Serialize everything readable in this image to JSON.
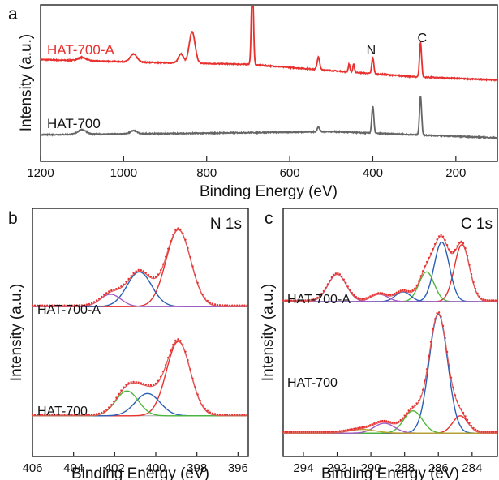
{
  "colors": {
    "red": "#e8302e",
    "gray": "#666666",
    "blue": "#2a5fb4",
    "green": "#4cb83a",
    "olive": "#b7a52c",
    "purple": "#a35bc6",
    "envelope": "#e05a5a",
    "baseline": "#aaaaaa",
    "dots": "#e8302e"
  },
  "chart_data": [
    {
      "panel": "a",
      "type": "line",
      "xlabel": "Binding Energy (eV)",
      "ylabel": "Intensity (a.u.)",
      "xlim": [
        1200,
        100
      ],
      "xticks": [
        1200,
        1000,
        800,
        600,
        400,
        200
      ],
      "ylim": [
        0,
        1
      ],
      "annotations": [
        {
          "text": "N",
          "x": 400
        },
        {
          "text": "C",
          "x": 285
        }
      ],
      "series": [
        {
          "name": "HAT-700-A",
          "color": "red",
          "offset": 0.6,
          "peaks": [
            [
              1100,
              0.02,
              10
            ],
            [
              976,
              0.05,
              8
            ],
            [
              862,
              0.06,
              6
            ],
            [
              835,
              0.2,
              7
            ],
            [
              690,
              0.55,
              2.5
            ],
            [
              531,
              0.08,
              3
            ],
            [
              457,
              0.05,
              2
            ],
            [
              446,
              0.05,
              2
            ],
            [
              400,
              0.1,
              2.5
            ],
            [
              285,
              0.22,
              2.5
            ]
          ],
          "background": [
            [
              1200,
              0.05
            ],
            [
              900,
              0.03
            ],
            [
              700,
              0.02
            ],
            [
              300,
              -0.06
            ],
            [
              100,
              -0.08
            ]
          ]
        },
        {
          "name": "HAT-700",
          "color": "gray",
          "offset": 0.17,
          "peaks": [
            [
              1100,
              0.03,
              10
            ],
            [
              976,
              0.02,
              8
            ],
            [
              531,
              0.03,
              3
            ],
            [
              400,
              0.17,
              2.5
            ],
            [
              285,
              0.25,
              2.5
            ]
          ],
          "background": [
            [
              1200,
              0.0
            ],
            [
              800,
              0.01
            ],
            [
              500,
              0.02
            ],
            [
              300,
              0.0
            ],
            [
              100,
              -0.02
            ]
          ]
        }
      ]
    },
    {
      "panel": "b",
      "type": "line",
      "title": "N 1s",
      "xlabel": "Binding Energy (eV)",
      "ylabel": "Intensity (a.u.)",
      "xlim": [
        406,
        395.5
      ],
      "xticks": [
        406,
        404,
        402,
        400,
        398,
        396
      ],
      "ylim": [
        0,
        1
      ],
      "samples": [
        {
          "name": "HAT-700-A",
          "offset": 0.6,
          "components": [
            {
              "center": 398.9,
              "height": 0.31,
              "width": 0.6,
              "color": "red"
            },
            {
              "center": 400.8,
              "height": 0.14,
              "width": 0.6,
              "color": "blue"
            },
            {
              "center": 402.2,
              "height": 0.05,
              "width": 0.5,
              "color": "purple"
            }
          ]
        },
        {
          "name": "HAT-700",
          "offset": 0.16,
          "components": [
            {
              "center": 398.9,
              "height": 0.3,
              "width": 0.58,
              "color": "red"
            },
            {
              "center": 400.4,
              "height": 0.09,
              "width": 0.6,
              "color": "blue"
            },
            {
              "center": 401.4,
              "height": 0.1,
              "width": 0.55,
              "color": "green"
            }
          ]
        }
      ]
    },
    {
      "panel": "c",
      "type": "line",
      "title": "C 1s",
      "xlabel": "Binding Energy (eV)",
      "ylabel": "Intensity (a.u.)",
      "xlim": [
        295.2,
        282.5
      ],
      "xticks": [
        294,
        292,
        290,
        288,
        286,
        284
      ],
      "ylim": [
        0,
        1
      ],
      "samples": [
        {
          "name": "HAT-700-A",
          "offset": 0.62,
          "components": [
            {
              "center": 284.6,
              "height": 0.23,
              "width": 0.45,
              "color": "red"
            },
            {
              "center": 285.8,
              "height": 0.24,
              "width": 0.45,
              "color": "blue"
            },
            {
              "center": 286.7,
              "height": 0.12,
              "width": 0.45,
              "color": "green"
            },
            {
              "center": 288.1,
              "height": 0.04,
              "width": 0.45,
              "color": "blue"
            },
            {
              "center": 289.5,
              "height": 0.03,
              "width": 0.5,
              "color": "purple"
            },
            {
              "center": 292.0,
              "height": 0.11,
              "width": 0.55,
              "color": "purple"
            }
          ]
        },
        {
          "name": "HAT-700",
          "offset": 0.09,
          "components": [
            {
              "center": 284.7,
              "height": 0.07,
              "width": 0.45,
              "color": "red"
            },
            {
              "center": 286.0,
              "height": 0.48,
              "width": 0.55,
              "color": "blue"
            },
            {
              "center": 287.5,
              "height": 0.09,
              "width": 0.55,
              "color": "green"
            },
            {
              "center": 289.2,
              "height": 0.04,
              "width": 0.6,
              "color": "purple"
            },
            {
              "center": 290.5,
              "height": 0.015,
              "width": 0.8,
              "color": "olive"
            }
          ]
        }
      ]
    }
  ]
}
